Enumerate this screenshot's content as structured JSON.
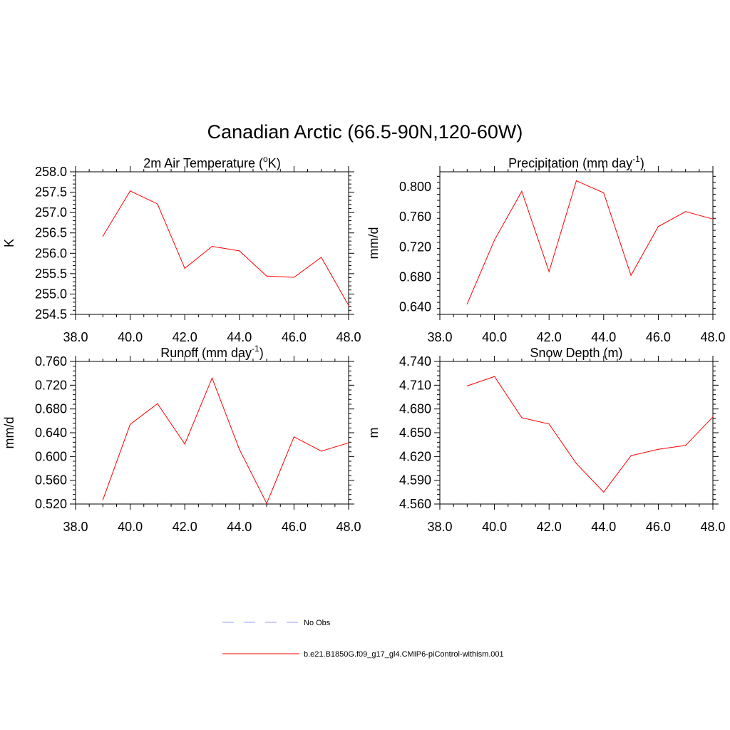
{
  "figure": {
    "title": "Canadian Arctic (66.5-90N,120-60W)"
  },
  "legend": {
    "placement": "bottom-center",
    "entries": [
      {
        "label": "No Obs",
        "color": "#9999ff",
        "style": "dashed"
      },
      {
        "label": "b.e21.B1850G.f09_g17_gl4.CMIP6-piControl-withism.001",
        "color": "#ff0000",
        "style": "solid"
      }
    ]
  },
  "chart_data": [
    {
      "type": "line",
      "title": "2m Air Temperature (",
      "title_sup": "o",
      "title_end": "K)",
      "ylabel": "K",
      "xlim": [
        38,
        48
      ],
      "ylim": [
        254.5,
        258.0
      ],
      "xticks": [
        "38.0",
        "40.0",
        "42.0",
        "44.0",
        "46.0",
        "48.0"
      ],
      "yticks": [
        "254.5",
        "255.0",
        "255.5",
        "256.0",
        "256.5",
        "257.0",
        "257.5",
        "258.0"
      ],
      "grid": false,
      "series": [
        {
          "color": "#ff0000",
          "x": [
            39,
            40,
            41,
            42,
            43,
            44,
            45,
            46,
            47,
            48
          ],
          "y": [
            256.42,
            257.53,
            257.21,
            255.63,
            256.17,
            256.06,
            255.44,
            255.41,
            255.9,
            254.72
          ]
        }
      ]
    },
    {
      "type": "line",
      "title": "Precipitation (mm day",
      "title_sup": "-1",
      "title_end": ")",
      "ylabel": "mm/d",
      "xlim": [
        38,
        48
      ],
      "ylim": [
        0.63,
        0.82
      ],
      "xticks": [
        "38.0",
        "40.0",
        "42.0",
        "44.0",
        "46.0",
        "48.0"
      ],
      "yticks": [
        "0.640",
        "0.680",
        "0.720",
        "0.760",
        "0.800"
      ],
      "grid": false,
      "series": [
        {
          "color": "#ff0000",
          "x": [
            39,
            40,
            41,
            42,
            43,
            44,
            45,
            46,
            47,
            48
          ],
          "y": [
            0.644,
            0.729,
            0.794,
            0.687,
            0.808,
            0.792,
            0.682,
            0.747,
            0.767,
            0.757
          ]
        }
      ]
    },
    {
      "type": "line",
      "title": "Runoff (mm day",
      "title_sup": "-1",
      "title_end": ")",
      "ylabel": "mm/d",
      "xlim": [
        38,
        48
      ],
      "ylim": [
        0.52,
        0.76
      ],
      "xticks": [
        "38.0",
        "40.0",
        "42.0",
        "44.0",
        "46.0",
        "48.0"
      ],
      "yticks": [
        "0.520",
        "0.560",
        "0.600",
        "0.640",
        "0.680",
        "0.720",
        "0.760"
      ],
      "grid": false,
      "series": [
        {
          "color": "#ff0000",
          "x": [
            39,
            40,
            41,
            42,
            43,
            44,
            45,
            46,
            47,
            48
          ],
          "y": [
            0.527,
            0.654,
            0.689,
            0.621,
            0.732,
            0.612,
            0.521,
            0.633,
            0.609,
            0.623
          ]
        }
      ]
    },
    {
      "type": "line",
      "title": "Snow Depth (m)",
      "title_sup": "",
      "title_end": "",
      "ylabel": "m",
      "xlim": [
        38,
        48
      ],
      "ylim": [
        4.56,
        4.74
      ],
      "xticks": [
        "38.0",
        "40.0",
        "42.0",
        "44.0",
        "46.0",
        "48.0"
      ],
      "yticks": [
        "4.560",
        "4.590",
        "4.620",
        "4.650",
        "4.680",
        "4.710",
        "4.740"
      ],
      "grid": false,
      "series": [
        {
          "color": "#ff0000",
          "x": [
            39,
            40,
            41,
            42,
            43,
            44,
            45,
            46,
            47,
            48
          ],
          "y": [
            4.709,
            4.721,
            4.669,
            4.661,
            4.611,
            4.575,
            4.621,
            4.629,
            4.634,
            4.67
          ]
        }
      ]
    }
  ]
}
